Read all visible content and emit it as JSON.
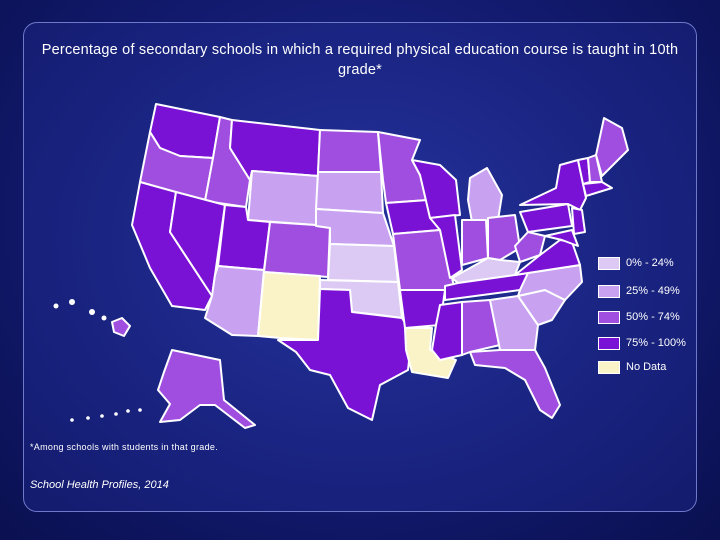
{
  "title": "Percentage of secondary schools in which a required physical education course is taught in 10th grade*",
  "footnote": "*Among schools with students in that grade.",
  "source": "School Health Profiles, 2014",
  "legend": [
    {
      "label": "0% - 24%",
      "color": "#dcc9f4"
    },
    {
      "label": "25% - 49%",
      "color": "#c8a2f0"
    },
    {
      "label": "50% - 74%",
      "color": "#a04ee0"
    },
    {
      "label": "75% - 100%",
      "color": "#7a12d6"
    },
    {
      "label": "No Data",
      "color": "#fbf3c8"
    }
  ],
  "categories": {
    "WA": "75% - 100%",
    "OR": "50% - 74%",
    "CA": "75% - 100%",
    "ID": "50% - 74%",
    "NV": "75% - 100%",
    "MT": "75% - 100%",
    "WY": "25% - 49%",
    "UT": "75% - 100%",
    "AZ": "25% - 49%",
    "CO": "50% - 74%",
    "NM": "No Data",
    "ND": "50% - 74%",
    "SD": "25% - 49%",
    "NE": "25% - 49%",
    "KS": "0% - 24%",
    "OK": "0% - 24%",
    "TX": "75% - 100%",
    "MN": "50% - 74%",
    "IA": "75% - 100%",
    "MO": "50% - 74%",
    "AR": "75% - 100%",
    "LA": "No Data",
    "WI": "75% - 100%",
    "IL": "75% - 100%",
    "MI": "25% - 49%",
    "IN": "50% - 74%",
    "OH": "50% - 74%",
    "KY": "0% - 24%",
    "TN": "75% - 100%",
    "MS": "75% - 100%",
    "AL": "50% - 74%",
    "GA": "25% - 49%",
    "FL": "50% - 74%",
    "SC": "25% - 49%",
    "NC": "25% - 49%",
    "VA": "75% - 100%",
    "WV": "50% - 74%",
    "PA": "75% - 100%",
    "NY": "75% - 100%",
    "ME": "50% - 74%",
    "VT": "75% - 100%",
    "NH": "50% - 74%",
    "MA": "75% - 100%",
    "NJ": "75% - 100%",
    "MD": "75% - 100%",
    "AK": "50% - 74%",
    "HI": "50% - 74%"
  }
}
